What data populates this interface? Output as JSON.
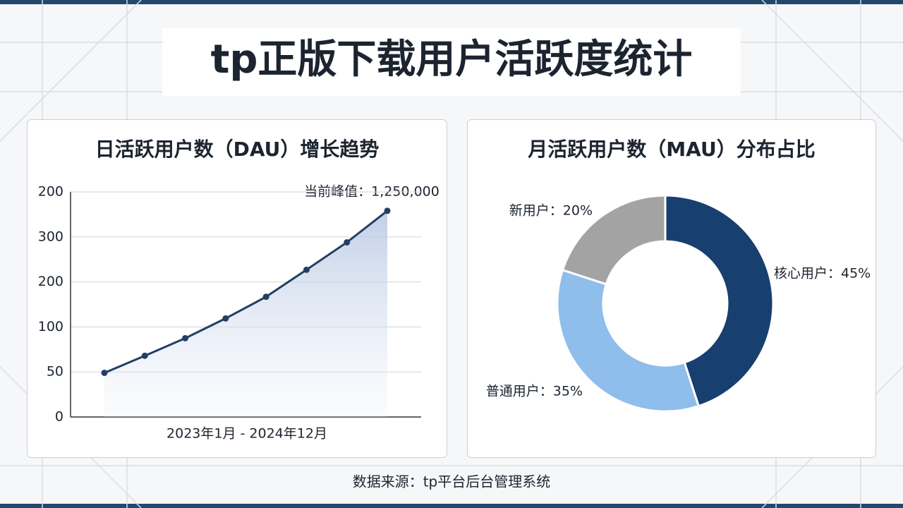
{
  "title": "tp正版下载用户活跃度统计",
  "footer": "数据来源：tp平台后台管理系统",
  "chart_data": [
    {
      "type": "line",
      "title": "日活跃用户数（DAU）增长趋势",
      "xlabel": "2023年1月 - 2024年12月",
      "annotation": "当前峰值：1,250,000",
      "categories": [
        null,
        null,
        null,
        null,
        null,
        null,
        null,
        null
      ],
      "values": [
        0.98,
        1.36,
        1.75,
        2.19,
        2.67,
        3.27,
        3.88,
        4.58
      ],
      "color": "#223f63",
      "area": true,
      "grid": true,
      "ylim": [
        0,
        5
      ],
      "yticks": [
        {
          "value": 0,
          "label": "0"
        },
        {
          "value": 1,
          "label": "50"
        },
        {
          "value": 2,
          "label": "100"
        },
        {
          "value": 3,
          "label": "200"
        },
        {
          "value": 4,
          "label": "300"
        },
        {
          "value": 5,
          "label": "200"
        }
      ]
    },
    {
      "type": "pie",
      "title": "月活跃用户数（MAU）分布占比",
      "values": [
        45,
        35,
        20
      ],
      "value_labels": [
        "核心用户：45%",
        "普通用户：35%",
        "新用户：20%"
      ],
      "colors": [
        "#173f6f",
        "#8fbdec",
        "#a3a3a3"
      ],
      "donut": true
    }
  ]
}
